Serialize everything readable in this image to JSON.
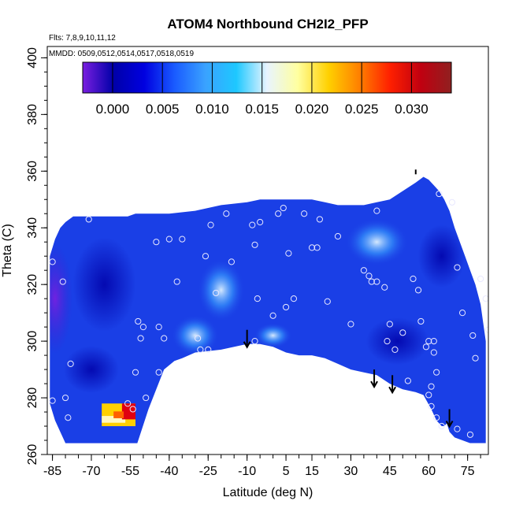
{
  "chart_data": {
    "type": "heatmap",
    "title": "ATOM4 Northbound CH2I2_PFP",
    "subtitle_flights": "Flts: 7,8,9,10,11,12",
    "subtitle_dates": "MMDD: 0509,0512,0514,0517,0518,0519",
    "xlabel": "Latitude (deg N)",
    "ylabel": "Theta (C)",
    "xlim": [
      -87,
      83
    ],
    "ylim": [
      260,
      404
    ],
    "x_ticks": [
      -85,
      -70,
      -55,
      -40,
      -25,
      -10,
      5,
      15,
      30,
      45,
      60,
      75
    ],
    "y_ticks": [
      260,
      280,
      300,
      320,
      340,
      360,
      380,
      400
    ],
    "colorbar": {
      "range": [
        -0.003,
        0.034
      ],
      "ticks": [
        0.0,
        0.005,
        0.01,
        0.015,
        0.02,
        0.025,
        0.03
      ],
      "tick_labels": [
        "0.000",
        "0.005",
        "0.010",
        "0.015",
        "0.020",
        "0.025",
        "0.030"
      ],
      "colors": [
        "#7a1fe0",
        "#0000a8",
        "#0000e0",
        "#1a5cff",
        "#3aa2ff",
        "#1ec8ff",
        "#e8f4ff",
        "#ffffa0",
        "#ffd000",
        "#ff8000",
        "#ff2000",
        "#c00010",
        "#902020"
      ]
    },
    "field_color": "#1a3fe6",
    "data_region": {
      "lat": [
        -86,
        -84,
        -82,
        -80,
        -77,
        -73,
        -70,
        -60,
        -56,
        -53,
        -50,
        -45,
        -40,
        -30,
        -20,
        -10,
        -5,
        0,
        5,
        10,
        15,
        20,
        25,
        30,
        35,
        40,
        45,
        50,
        55,
        58,
        60,
        62,
        64,
        66,
        68,
        70,
        72,
        74,
        76,
        78,
        80,
        82
      ],
      "top": [
        330,
        336,
        340,
        342,
        344,
        344,
        344,
        344,
        344,
        345,
        345,
        345,
        345,
        346,
        348,
        349,
        350,
        350,
        350,
        350,
        350,
        349,
        348,
        348,
        348,
        349,
        350,
        353,
        356,
        358,
        357,
        355,
        353,
        350,
        346,
        340,
        335,
        330,
        325,
        320,
        313,
        300
      ],
      "bottom": [
        278,
        272,
        268,
        264,
        264,
        264,
        264,
        264,
        264,
        264,
        264,
        264,
        264,
        264,
        264,
        264,
        264,
        264,
        264,
        264,
        264,
        264,
        264,
        264,
        264,
        264,
        264,
        264,
        264,
        264,
        264,
        264,
        264,
        264,
        264,
        264,
        264,
        264,
        264,
        264,
        264,
        264
      ]
    },
    "terrain_profile": {
      "lat": [
        -53,
        -48,
        -42,
        -38,
        -35,
        -30,
        -20,
        -10,
        -5,
        0,
        5,
        10,
        15,
        20,
        25,
        30,
        35,
        40,
        45,
        50,
        55,
        58,
        61,
        63,
        65,
        66,
        67,
        68,
        70,
        73,
        76,
        78,
        80,
        82
      ],
      "theta": [
        262,
        276,
        290,
        293,
        294,
        296,
        297,
        299,
        299,
        298,
        296,
        295,
        295,
        294,
        292,
        290,
        289,
        288,
        285,
        283,
        282,
        281,
        276,
        272,
        270,
        270,
        271,
        268,
        266,
        265,
        264,
        264,
        264,
        264
      ]
    },
    "hotspot": {
      "lat_range": [
        -66,
        -53
      ],
      "theta_range": [
        270,
        278
      ],
      "value_max": 0.032
    },
    "observations": [
      {
        "x": -85,
        "y": 328
      },
      {
        "x": -81,
        "y": 321
      },
      {
        "x": -85,
        "y": 279
      },
      {
        "x": -78,
        "y": 292
      },
      {
        "x": -80,
        "y": 280
      },
      {
        "x": -79,
        "y": 273
      },
      {
        "x": -71,
        "y": 343
      },
      {
        "x": -52,
        "y": 307
      },
      {
        "x": -50,
        "y": 305
      },
      {
        "x": -51,
        "y": 301
      },
      {
        "x": -53,
        "y": 289
      },
      {
        "x": -49,
        "y": 280
      },
      {
        "x": -56,
        "y": 278
      },
      {
        "x": -54,
        "y": 276
      },
      {
        "x": -45,
        "y": 335
      },
      {
        "x": -40,
        "y": 336
      },
      {
        "x": -35,
        "y": 336
      },
      {
        "x": -37,
        "y": 321
      },
      {
        "x": -44,
        "y": 305
      },
      {
        "x": -42,
        "y": 301
      },
      {
        "x": -44,
        "y": 289
      },
      {
        "x": -29,
        "y": 301
      },
      {
        "x": -28,
        "y": 297
      },
      {
        "x": -25,
        "y": 297
      },
      {
        "x": -26,
        "y": 330
      },
      {
        "x": -24,
        "y": 341
      },
      {
        "x": -18,
        "y": 345
      },
      {
        "x": -22,
        "y": 317
      },
      {
        "x": -16,
        "y": 328
      },
      {
        "x": -8,
        "y": 341
      },
      {
        "x": -5,
        "y": 342
      },
      {
        "x": -7,
        "y": 334
      },
      {
        "x": -6,
        "y": 315
      },
      {
        "x": -7,
        "y": 300
      },
      {
        "x": 0,
        "y": 309
      },
      {
        "x": 2,
        "y": 345
      },
      {
        "x": 4,
        "y": 347
      },
      {
        "x": 6,
        "y": 331
      },
      {
        "x": 5,
        "y": 312
      },
      {
        "x": 8,
        "y": 315
      },
      {
        "x": 12,
        "y": 345
      },
      {
        "x": 15,
        "y": 333
      },
      {
        "x": 17,
        "y": 333
      },
      {
        "x": 18,
        "y": 343
      },
      {
        "x": 21,
        "y": 314
      },
      {
        "x": 25,
        "y": 337
      },
      {
        "x": 30,
        "y": 306
      },
      {
        "x": 35,
        "y": 325
      },
      {
        "x": 37,
        "y": 323
      },
      {
        "x": 38,
        "y": 321
      },
      {
        "x": 40,
        "y": 346
      },
      {
        "x": 40,
        "y": 321
      },
      {
        "x": 43,
        "y": 319
      },
      {
        "x": 45,
        "y": 306
      },
      {
        "x": 44,
        "y": 300
      },
      {
        "x": 47,
        "y": 297
      },
      {
        "x": 50,
        "y": 303
      },
      {
        "x": 52,
        "y": 286
      },
      {
        "x": 54,
        "y": 322
      },
      {
        "x": 56,
        "y": 318
      },
      {
        "x": 57,
        "y": 307
      },
      {
        "x": 59,
        "y": 298
      },
      {
        "x": 60,
        "y": 300
      },
      {
        "x": 62,
        "y": 300
      },
      {
        "x": 62,
        "y": 296
      },
      {
        "x": 63,
        "y": 289
      },
      {
        "x": 61,
        "y": 284
      },
      {
        "x": 60,
        "y": 281
      },
      {
        "x": 61,
        "y": 277
      },
      {
        "x": 63,
        "y": 273
      },
      {
        "x": 65,
        "y": 270
      },
      {
        "x": 64,
        "y": 352
      },
      {
        "x": 69,
        "y": 349
      },
      {
        "x": 71,
        "y": 326
      },
      {
        "x": 73,
        "y": 310
      },
      {
        "x": 77,
        "y": 302
      },
      {
        "x": 78,
        "y": 294
      },
      {
        "x": 80,
        "y": 322
      },
      {
        "x": 82,
        "y": 315
      },
      {
        "x": 83,
        "y": 304
      },
      {
        "x": 76,
        "y": 267
      },
      {
        "x": 71,
        "y": 269
      }
    ],
    "flight_arrows": [
      {
        "x": -10,
        "y": 304
      },
      {
        "x": 39,
        "y": 290
      },
      {
        "x": 46,
        "y": 288
      },
      {
        "x": 68,
        "y": 276
      }
    ],
    "top_marker": {
      "x": 55,
      "y": 360
    }
  }
}
